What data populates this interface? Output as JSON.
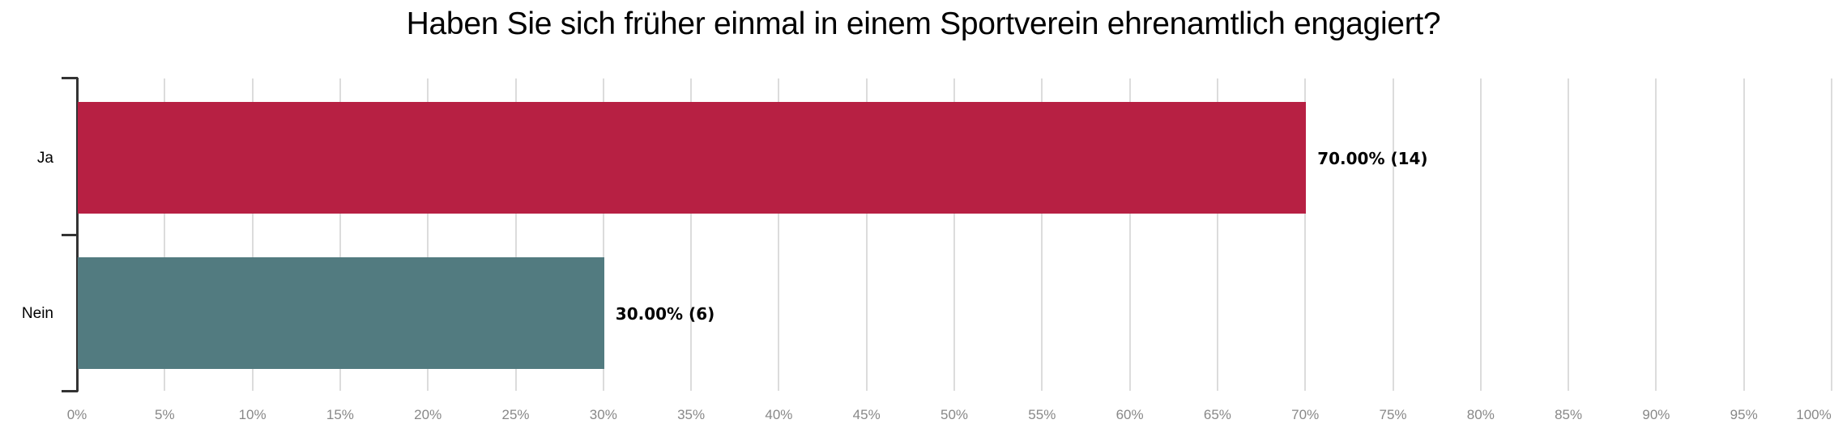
{
  "title": "Haben Sie sich früher einmal in einem Sportverein ehrenamtlich engagiert?",
  "colors": {
    "ja": "#b72043",
    "nein": "#527b80",
    "grid": "#dcdcdc",
    "axis": "#333333",
    "tick_text": "#888888"
  },
  "bars": [
    {
      "label": "Ja",
      "value": 70.0,
      "count": 14,
      "value_label": "70.00% (14)",
      "color": "#b72043"
    },
    {
      "label": "Nein",
      "value": 30.0,
      "count": 6,
      "value_label": "30.00% (6)",
      "color": "#527b80"
    }
  ],
  "x_ticks": [
    "0%",
    "5%",
    "10%",
    "15%",
    "20%",
    "25%",
    "30%",
    "35%",
    "40%",
    "45%",
    "50%",
    "55%",
    "60%",
    "65%",
    "70%",
    "75%",
    "80%",
    "85%",
    "90%",
    "95%",
    "100%"
  ],
  "chart_data": {
    "type": "bar",
    "orientation": "horizontal",
    "title": "Haben Sie sich früher einmal in einem Sportverein ehrenamtlich engagiert?",
    "categories": [
      "Ja",
      "Nein"
    ],
    "values": [
      70.0,
      30.0
    ],
    "counts": [
      14,
      6
    ],
    "data_labels": [
      "70.00% (14)",
      "30.00% (6)"
    ],
    "xlabel": "",
    "ylabel": "",
    "xlim": [
      0,
      100
    ],
    "x_tick_labels": [
      "0%",
      "5%",
      "10%",
      "15%",
      "20%",
      "25%",
      "30%",
      "35%",
      "40%",
      "45%",
      "50%",
      "55%",
      "60%",
      "65%",
      "70%",
      "75%",
      "80%",
      "85%",
      "90%",
      "95%",
      "100%"
    ],
    "grid": "vertical",
    "legend": "none"
  }
}
